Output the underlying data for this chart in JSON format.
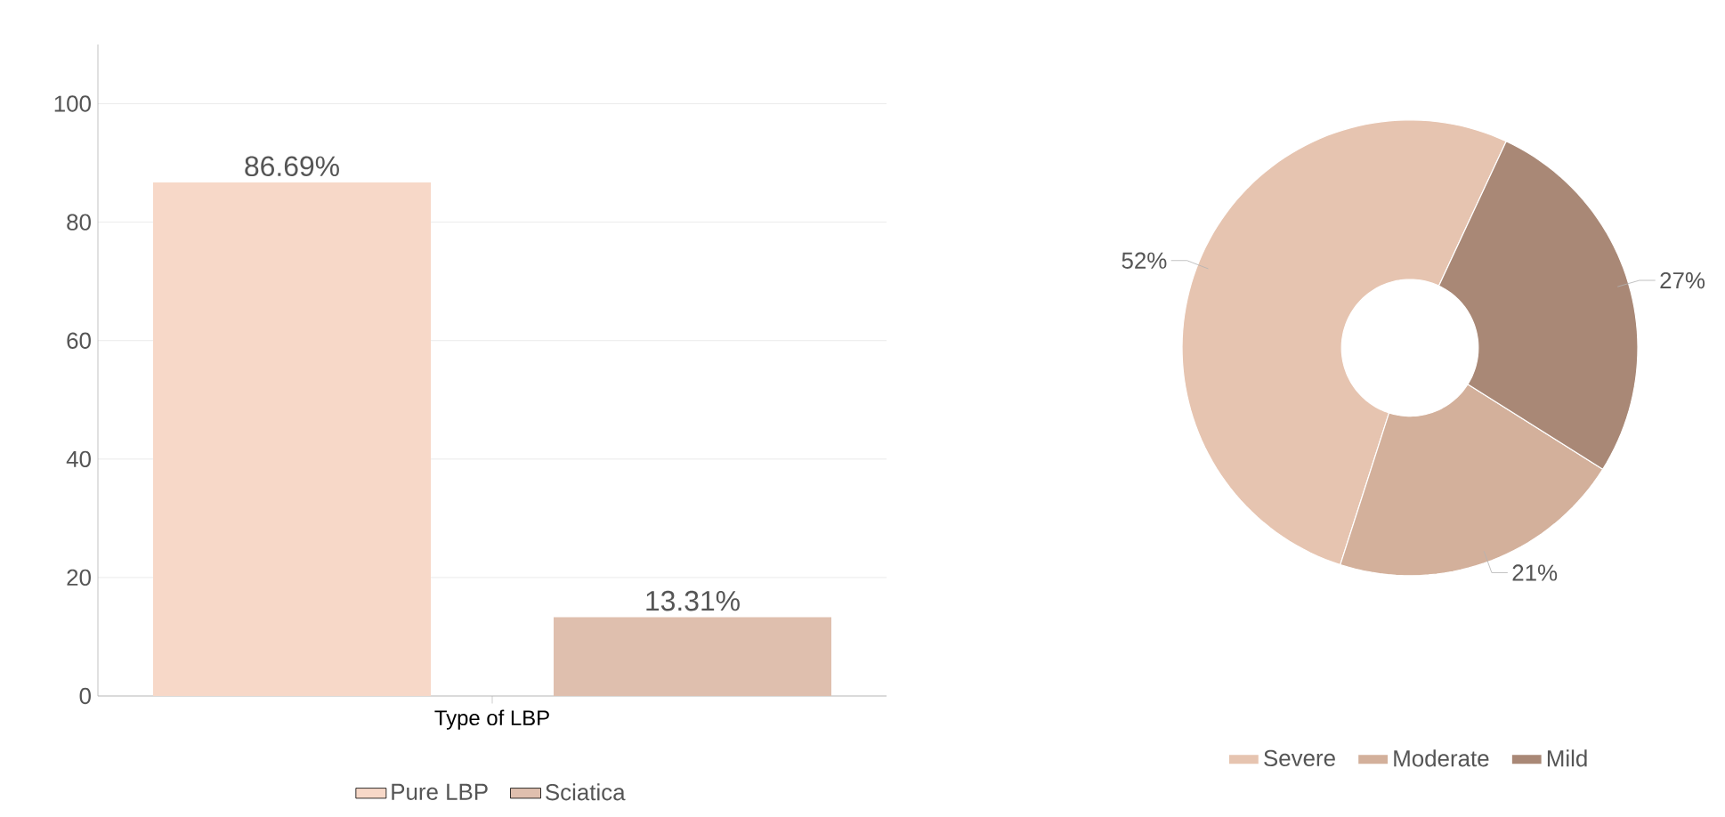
{
  "chart_data": [
    {
      "type": "bar",
      "categories": [
        "Type of LBP"
      ],
      "series": [
        {
          "name": "Pure LBP",
          "color": "#f7d8c8",
          "values": [
            86.69
          ],
          "value_labels": [
            "86.69%"
          ]
        },
        {
          "name": "Sciatica",
          "color": "#dfbfae",
          "values": [
            13.31
          ],
          "value_labels": [
            "13.31%"
          ]
        }
      ],
      "ylim": [
        0,
        110
      ],
      "yticks": [
        0,
        20,
        40,
        60,
        80,
        100
      ],
      "grid": "y",
      "legend": "bottom"
    },
    {
      "type": "donut",
      "categories": [
        "Severe",
        "Moderate",
        "Mild"
      ],
      "values": [
        52,
        21,
        27
      ],
      "colors": [
        "#e6c4b0",
        "#d3b09b",
        "#a98876"
      ],
      "value_labels": [
        "52%",
        "21%",
        "27%"
      ],
      "legend": "bottom"
    }
  ]
}
